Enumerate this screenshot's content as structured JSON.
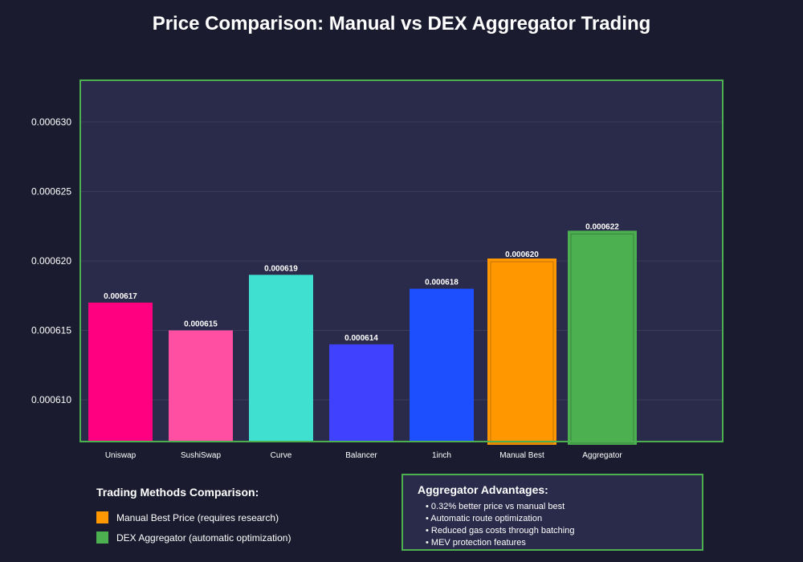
{
  "chart_data": {
    "type": "bar",
    "title": "Price Comparison: Manual vs DEX Aggregator Trading",
    "categories": [
      "Uniswap",
      "SushiSwap",
      "Curve",
      "Balancer",
      "1inch",
      "Manual Best",
      "Aggregator"
    ],
    "values": [
      0.000617,
      0.000615,
      0.000619,
      0.000614,
      0.000618,
      0.00062,
      0.000622
    ],
    "value_labels": [
      "0.000617",
      "0.000615",
      "0.000619",
      "0.000614",
      "0.000618",
      "0.000620",
      "0.000622"
    ],
    "colors": [
      "#ff0080",
      "#ff4fa3",
      "#40e0d0",
      "#4040ff",
      "#1e4fff",
      "#ff9800",
      "#4caf50"
    ],
    "highlight_outline": [
      false,
      false,
      false,
      false,
      false,
      true,
      true
    ],
    "y_ticks": [
      0.00061,
      0.000615,
      0.00062,
      0.000625,
      0.00063
    ],
    "y_tick_labels": [
      "0.000610",
      "0.000615",
      "0.000620",
      "0.000625",
      "0.000630"
    ],
    "ylim": [
      0.000607,
      0.000633
    ],
    "grid": true,
    "xlabel": "",
    "ylabel": ""
  },
  "legend": {
    "title": "Trading Methods Comparison:",
    "items": [
      {
        "label": "Manual Best Price (requires research)",
        "color": "#ff9800"
      },
      {
        "label": "DEX Aggregator (automatic optimization)",
        "color": "#4caf50"
      }
    ]
  },
  "advantages": {
    "title": "Aggregator Advantages:",
    "items": [
      "• 0.32% better price vs manual best",
      "• Automatic route optimization",
      "• Reduced gas costs through batching",
      "• MEV protection features"
    ]
  },
  "theme": {
    "background": "#1b1b2f",
    "plot_background": "#2a2a4a",
    "plot_border": "#4caf50",
    "grid_color": "#3c3c58"
  }
}
